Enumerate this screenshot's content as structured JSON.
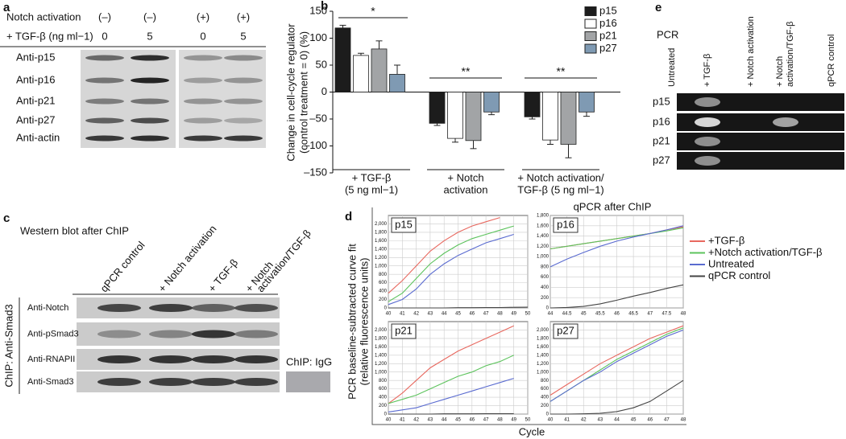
{
  "panel_a": {
    "label": "a",
    "header": [
      {
        "label": "Notch activation",
        "values": [
          "(–)",
          "(–)",
          "(+)",
          "(+)"
        ]
      },
      {
        "label": "+ TGF-β (ng ml−1)",
        "values": [
          0,
          5,
          0,
          5
        ]
      }
    ],
    "rows": [
      "Anti-p15",
      "Anti-p16",
      "Anti-p21",
      "Anti-p27",
      "Anti-actin"
    ]
  },
  "panel_b": {
    "label": "b",
    "type": "bar",
    "y_label": [
      "Change in cell-cycle regulator",
      "(control treatment = 0) (%)"
    ],
    "categories": [
      [
        "+ TGF-β",
        "(5 ng ml−1)"
      ],
      [
        "+ Notch",
        "activation"
      ],
      [
        "+ Notch activation/",
        "TGF-β (5 ng ml−1)"
      ]
    ],
    "series": [
      {
        "name": "p15",
        "color": "#1c1c1c",
        "values": [
          119,
          -58,
          -46
        ],
        "errors": [
          5,
          4,
          4
        ]
      },
      {
        "name": "p16",
        "color": "#ffffff",
        "values": [
          68,
          -86,
          -89
        ],
        "errors": [
          4,
          7,
          8
        ]
      },
      {
        "name": "p21",
        "color": "#a2a4a6",
        "values": [
          80,
          -90,
          -97
        ],
        "errors": [
          15,
          15,
          25
        ]
      },
      {
        "name": "p27",
        "color": "#7f9ab3",
        "values": [
          33,
          -37,
          -37
        ],
        "errors": [
          17,
          5,
          8
        ]
      }
    ],
    "ylim": [
      -150,
      150
    ],
    "yticks": [
      150,
      100,
      50,
      0,
      {
        "value": -50,
        "label": "–50"
      },
      {
        "value": -100,
        "label": "–100"
      },
      {
        "value": -150,
        "label": "–150"
      }
    ],
    "significance": [
      "*",
      "**",
      "**"
    ]
  },
  "panel_c": {
    "label": "c",
    "title": "Western blot after ChIP",
    "columns": [
      [
        "qPCR control"
      ],
      [
        "+ Notch activation"
      ],
      [
        "+ TGF-β"
      ],
      [
        "+ Notch",
        "activation/TGF-β"
      ]
    ],
    "side_label": "ChIP: Anti-Smad3",
    "rows": [
      "Anti-Notch",
      "Anti-pSmad3",
      "Anti-RNAPII",
      "Anti-Smad3"
    ],
    "control_label": "ChIP: IgG"
  },
  "panel_d": {
    "label": "d",
    "title": "qPCR after ChIP",
    "y_label": [
      "PCR baseline-subtracted curve fit",
      "(relative fluorescence units)"
    ],
    "x_label": "Cycle",
    "legend": [
      {
        "name": "+TGF-β",
        "color": "#e8685f"
      },
      {
        "name": "+Notch activation/TGF-β",
        "color": "#5cc35c"
      },
      {
        "name": "Untreated",
        "color": "#5a6bd0"
      },
      {
        "name": "qPCR control",
        "color": "#444444"
      }
    ],
    "plots": [
      {
        "name": "p15",
        "x": [
          40,
          41,
          42,
          43,
          44,
          45,
          46,
          47,
          48,
          49,
          50
        ],
        "xlim": [
          40,
          50
        ],
        "xticks": [
          40,
          41,
          42,
          43,
          44,
          45,
          46,
          47,
          48,
          49,
          50
        ],
        "ylim": [
          0,
          2200
        ],
        "yticks": [
          0,
          200,
          400,
          600,
          800,
          {
            "value": 1000,
            "label": "1,000"
          },
          {
            "value": 1200,
            "label": "1,200"
          },
          {
            "value": 1400,
            "label": "1,400"
          },
          {
            "value": 1600,
            "label": "1,600"
          },
          {
            "value": 1800,
            "label": "1,800"
          },
          {
            "value": 2000,
            "label": "2,000"
          }
        ],
        "series": [
          [
            350,
            650,
            1000,
            1350,
            1600,
            1800,
            1950,
            2050,
            2150,
            null,
            null
          ],
          [
            150,
            350,
            700,
            1050,
            1300,
            1500,
            1650,
            1750,
            1850,
            1950,
            null
          ],
          [
            80,
            200,
            450,
            800,
            1050,
            1250,
            1400,
            1550,
            1650,
            1750,
            null
          ],
          [
            0,
            0,
            0,
            0,
            0,
            5,
            5,
            10,
            10,
            15,
            20
          ]
        ]
      },
      {
        "name": "p16",
        "x": [
          44,
          44.5,
          45,
          45.5,
          46,
          46.5,
          47,
          47.5,
          48
        ],
        "xlim": [
          44,
          48
        ],
        "xticks": [
          44,
          44.5,
          45,
          45.5,
          46,
          46.5,
          47,
          47.5,
          48
        ],
        "ylim": [
          0,
          1800
        ],
        "yticks": [
          0,
          200,
          400,
          600,
          800,
          {
            "value": 1000,
            "label": "1,000"
          },
          {
            "value": 1200,
            "label": "1,200"
          },
          {
            "value": 1400,
            "label": "1,400"
          },
          {
            "value": 1600,
            "label": "1,600"
          },
          {
            "value": 1800,
            "label": "1,800"
          }
        ],
        "series": [
          [
            1150,
            1200,
            1250,
            1300,
            1350,
            1400,
            1450,
            1520,
            1580
          ],
          [
            1150,
            1200,
            1250,
            1300,
            1350,
            1400,
            1450,
            1500,
            1560
          ],
          [
            800,
            950,
            1080,
            1200,
            1300,
            1380,
            1450,
            1520,
            1600
          ],
          [
            0,
            10,
            30,
            80,
            150,
            230,
            300,
            380,
            450
          ]
        ]
      },
      {
        "name": "p21",
        "x": [
          40,
          41,
          42,
          43,
          44,
          45,
          46,
          47,
          48,
          49,
          50
        ],
        "xlim": [
          40,
          50
        ],
        "xticks": [
          40,
          41,
          42,
          43,
          44,
          45,
          46,
          47,
          48,
          49,
          50
        ],
        "ylim": [
          0,
          2200
        ],
        "yticks": [
          0,
          200,
          400,
          600,
          800,
          {
            "value": 1000,
            "label": "1,000"
          },
          {
            "value": 1200,
            "label": "1,200"
          },
          {
            "value": 1400,
            "label": "1,400"
          },
          {
            "value": 1600,
            "label": "1,600"
          },
          {
            "value": 1800,
            "label": "1,800"
          },
          {
            "value": 2000,
            "label": "2,000"
          }
        ],
        "series": [
          [
            250,
            500,
            800,
            1100,
            1300,
            1500,
            1650,
            1800,
            1950,
            2100,
            null
          ],
          [
            250,
            350,
            450,
            600,
            750,
            900,
            1000,
            1150,
            1250,
            1400,
            null
          ],
          [
            50,
            100,
            150,
            250,
            350,
            450,
            550,
            650,
            750,
            850,
            null
          ],
          [
            0,
            0,
            0,
            0,
            5,
            5,
            5,
            10,
            10,
            10,
            null
          ]
        ]
      },
      {
        "name": "p27",
        "x": [
          40,
          41,
          42,
          43,
          44,
          45,
          46,
          47,
          48
        ],
        "xlim": [
          40,
          48
        ],
        "xticks": [
          40,
          41,
          42,
          43,
          44,
          45,
          46,
          47,
          48
        ],
        "ylim": [
          0,
          2200
        ],
        "yticks": [
          0,
          200,
          400,
          600,
          800,
          {
            "value": 1000,
            "label": "1,000"
          },
          {
            "value": 1200,
            "label": "1,200"
          },
          {
            "value": 1400,
            "label": "1,400"
          },
          {
            "value": 1600,
            "label": "1,600"
          },
          {
            "value": 1800,
            "label": "1,800"
          },
          {
            "value": 2000,
            "label": "2,000"
          }
        ],
        "series": [
          [
            450,
            700,
            950,
            1200,
            1400,
            1600,
            1800,
            1950,
            2100
          ],
          [
            300,
            550,
            800,
            1050,
            1300,
            1500,
            1700,
            1900,
            2050
          ],
          [
            300,
            550,
            800,
            1000,
            1250,
            1450,
            1650,
            1850,
            2000
          ],
          [
            0,
            0,
            5,
            20,
            60,
            150,
            300,
            550,
            800
          ]
        ]
      }
    ]
  },
  "panel_e": {
    "label": "e",
    "title": "PCR",
    "columns": [
      [
        "Untreated"
      ],
      [
        "+ TGF-β"
      ],
      [
        "+ Notch activation"
      ],
      [
        "+ Notch",
        "activation/TGF-β"
      ],
      [
        "qPCR control"
      ]
    ],
    "rows": [
      "p15",
      "p16",
      "p21",
      "p27"
    ]
  }
}
